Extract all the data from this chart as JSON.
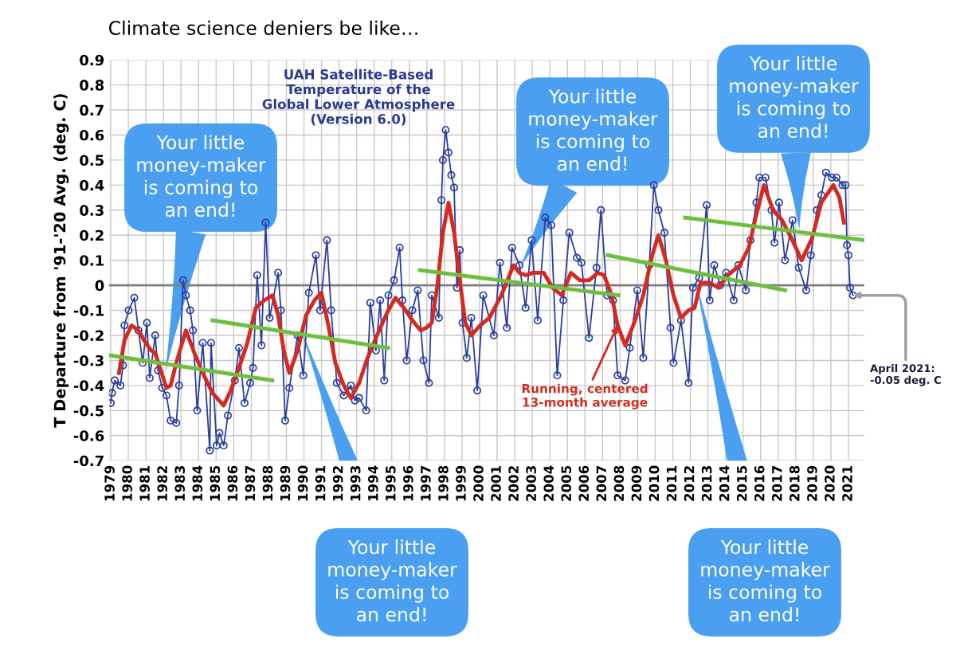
{
  "chart_data": {
    "type": "line",
    "title": "Climate science deniers be like…",
    "subtitle": "UAH Satellite-Based\nTemperature of the\nGlobal Lower Atmosphere\n(Version 6.0)",
    "ylabel": "T Departure from '91-'20 Avg. (deg. C)",
    "xlim": [
      1978.9,
      2021.9
    ],
    "xticks": [
      1979,
      1980,
      1981,
      1982,
      1983,
      1984,
      1985,
      1986,
      1987,
      1988,
      1989,
      1990,
      1991,
      1992,
      1993,
      1994,
      1995,
      1996,
      1997,
      1998,
      1999,
      2000,
      2001,
      2002,
      2003,
      2004,
      2005,
      2006,
      2007,
      2008,
      2009,
      2010,
      2011,
      2012,
      2013,
      2014,
      2015,
      2016,
      2017,
      2018,
      2019,
      2020,
      2021
    ],
    "ylim": [
      -0.7,
      0.9
    ],
    "yticks": [
      {
        "value": -0.7,
        "label": "-0.7"
      },
      {
        "value": -0.6,
        "label": "-0.6"
      },
      {
        "value": -0.5,
        "label": "-0.5"
      },
      {
        "value": -0.4,
        "label": "-0.4"
      },
      {
        "value": -0.3,
        "label": "-0.3"
      },
      {
        "value": -0.2,
        "label": "-0.2"
      },
      {
        "value": -0.1,
        "label": "-0.1"
      },
      0,
      0.1,
      0.2,
      0.3,
      0.4,
      0.5,
      0.6,
      0.7,
      0.8,
      0.9
    ],
    "grid": true,
    "series": [
      {
        "color": "#2b3fa0",
        "marker": "circle",
        "x": [
          1979.0,
          1979.07,
          1979.23,
          1979.55,
          1979.7,
          1979.78,
          1980.02,
          1980.34,
          1980.58,
          1980.82,
          1981.06,
          1981.22,
          1981.53,
          1981.69,
          1981.93,
          1982.17,
          1982.41,
          1982.73,
          1982.89,
          1983.12,
          1983.28,
          1983.52,
          1983.68,
          1983.92,
          1984.24,
          1984.64,
          1984.71,
          1985.03,
          1985.19,
          1985.43,
          1985.67,
          1986.07,
          1986.3,
          1986.62,
          1986.94,
          1987.1,
          1987.34,
          1987.58,
          1987.82,
          1988.05,
          1988.53,
          1988.69,
          1988.93,
          1989.17,
          1989.64,
          1989.96,
          1990.28,
          1990.68,
          1990.92,
          1991.31,
          1991.55,
          1991.87,
          1992.27,
          1992.67,
          1992.9,
          1993.14,
          1993.54,
          1993.78,
          1994.1,
          1994.34,
          1994.57,
          1994.81,
          1995.13,
          1995.45,
          1995.61,
          1995.85,
          1996.17,
          1996.48,
          1996.8,
          1997.12,
          1997.28,
          1997.68,
          1997.83,
          1997.91,
          1998.07,
          1998.23,
          1998.39,
          1998.55,
          1998.71,
          1998.87,
          1999.03,
          1999.27,
          1999.53,
          1999.87,
          2000.21,
          2000.81,
          2001.16,
          2001.55,
          2001.85,
          2002.27,
          2002.62,
          2002.96,
          2003.31,
          2003.74,
          2004.08,
          2004.42,
          2004.77,
          2005.11,
          2005.54,
          2005.8,
          2006.23,
          2006.66,
          2006.91,
          2007.26,
          2007.6,
          2007.86,
          2008.29,
          2008.55,
          2008.98,
          2009.32,
          2009.66,
          2009.92,
          2010.18,
          2010.52,
          2010.87,
          2011.04,
          2011.47,
          2011.9,
          2012.15,
          2012.5,
          2012.93,
          2013.1,
          2013.36,
          2013.7,
          2014.04,
          2014.47,
          2014.73,
          2015.16,
          2015.42,
          2015.76,
          2015.93,
          2016.28,
          2016.62,
          2016.79,
          2017.05,
          2017.39,
          2017.82,
          2018.17,
          2018.6,
          2018.86,
          2019.2,
          2019.46,
          2019.72,
          2020.06,
          2020.32,
          2020.66,
          2020.83,
          2020.92,
          2021.0,
          2021.09,
          2021.26
        ],
        "values": [
          -0.47,
          -0.43,
          -0.38,
          -0.4,
          -0.32,
          -0.16,
          -0.1,
          -0.05,
          -0.18,
          -0.31,
          -0.15,
          -0.37,
          -0.2,
          -0.34,
          -0.41,
          -0.44,
          -0.54,
          -0.55,
          -0.4,
          0.02,
          -0.04,
          -0.1,
          -0.18,
          -0.5,
          -0.23,
          -0.66,
          -0.23,
          -0.64,
          -0.59,
          -0.64,
          -0.52,
          -0.38,
          -0.25,
          -0.47,
          -0.39,
          -0.33,
          0.04,
          -0.24,
          0.25,
          -0.13,
          0.05,
          -0.1,
          -0.54,
          -0.41,
          -0.2,
          -0.36,
          -0.03,
          0.12,
          -0.1,
          0.18,
          -0.1,
          -0.39,
          -0.44,
          -0.4,
          -0.46,
          -0.45,
          -0.5,
          -0.07,
          -0.26,
          -0.06,
          -0.38,
          -0.04,
          0.02,
          0.15,
          -0.06,
          -0.3,
          -0.1,
          -0.02,
          -0.3,
          -0.39,
          -0.04,
          -0.13,
          0.34,
          0.5,
          0.62,
          0.53,
          0.44,
          0.39,
          -0.01,
          0.14,
          -0.15,
          -0.29,
          -0.13,
          -0.42,
          -0.04,
          -0.2,
          0.09,
          -0.17,
          0.15,
          0.08,
          -0.09,
          0.18,
          -0.14,
          0.27,
          0.24,
          -0.36,
          -0.06,
          0.21,
          0.11,
          0.09,
          -0.21,
          0.07,
          0.3,
          -0.04,
          -0.06,
          -0.36,
          -0.38,
          -0.25,
          -0.02,
          -0.29,
          0.08,
          0.4,
          0.3,
          0.21,
          -0.17,
          -0.31,
          -0.14,
          -0.39,
          -0.01,
          0.03,
          0.32,
          -0.06,
          0.08,
          0.0,
          0.05,
          -0.06,
          0.08,
          -0.02,
          0.18,
          0.33,
          0.43,
          0.43,
          0.3,
          0.17,
          0.33,
          0.1,
          0.26,
          0.07,
          -0.02,
          0.12,
          0.3,
          0.36,
          0.45,
          0.43,
          0.43,
          0.4,
          0.4,
          0.16,
          0.12,
          -0.01,
          -0.04
        ]
      },
      {
        "color": "#d42a20",
        "x": [
          1979.47,
          1979.78,
          1980.18,
          1980.58,
          1980.9,
          1981.3,
          1981.53,
          1981.85,
          1982.17,
          1982.41,
          1982.73,
          1983.28,
          1983.76,
          1984.24,
          1984.79,
          1985.43,
          1985.83,
          1986.3,
          1986.78,
          1987.26,
          1987.74,
          1988.21,
          1988.53,
          1988.85,
          1989.17,
          1989.64,
          1990.12,
          1990.6,
          1990.99,
          1991.39,
          1991.79,
          1992.27,
          1992.67,
          1993.14,
          1993.62,
          1994.1,
          1994.73,
          1995.21,
          1995.69,
          1996.17,
          1996.64,
          1996.96,
          1997.28,
          1997.6,
          1997.91,
          1998.23,
          1998.55,
          1998.87,
          1999.19,
          1999.53,
          2000.04,
          2000.56,
          2001.24,
          2001.93,
          2002.27,
          2002.62,
          2003.05,
          2003.65,
          2004.16,
          2004.68,
          2005.2,
          2005.71,
          2006.23,
          2006.74,
          2007.09,
          2007.52,
          2007.86,
          2008.29,
          2008.8,
          2009.32,
          2009.83,
          2010.18,
          2010.61,
          2011.04,
          2011.47,
          2011.9,
          2012.24,
          2012.58,
          2013.1,
          2013.61,
          2014.13,
          2014.82,
          2015.33,
          2015.68,
          2016.19,
          2016.71,
          2017.22,
          2017.74,
          2018.34,
          2018.94,
          2019.46,
          2020.14,
          2020.49,
          2020.74
        ],
        "values": [
          -0.35,
          -0.22,
          -0.16,
          -0.18,
          -0.22,
          -0.26,
          -0.27,
          -0.34,
          -0.41,
          -0.4,
          -0.31,
          -0.18,
          -0.27,
          -0.35,
          -0.43,
          -0.48,
          -0.42,
          -0.33,
          -0.23,
          -0.09,
          -0.06,
          -0.04,
          -0.12,
          -0.26,
          -0.35,
          -0.26,
          -0.12,
          -0.06,
          -0.03,
          -0.16,
          -0.31,
          -0.4,
          -0.45,
          -0.39,
          -0.29,
          -0.21,
          -0.11,
          -0.05,
          -0.09,
          -0.14,
          -0.18,
          -0.17,
          -0.15,
          0.0,
          0.21,
          0.33,
          0.21,
          0.02,
          -0.15,
          -0.2,
          -0.16,
          -0.13,
          -0.04,
          0.08,
          0.05,
          0.04,
          0.05,
          0.05,
          -0.01,
          -0.04,
          0.05,
          0.02,
          0.02,
          0.05,
          0.04,
          -0.04,
          -0.16,
          -0.24,
          -0.15,
          -0.04,
          0.12,
          0.2,
          0.1,
          -0.04,
          -0.13,
          -0.1,
          -0.09,
          0.01,
          0.01,
          -0.01,
          0.04,
          0.08,
          0.15,
          0.26,
          0.4,
          0.3,
          0.26,
          0.19,
          0.1,
          0.19,
          0.33,
          0.4,
          0.35,
          0.25
        ]
      },
      {
        "color": "#6cbf3f",
        "x": [
          1979.0,
          1988.2
        ],
        "values": [
          -0.28,
          -0.38
        ]
      },
      {
        "color": "#6cbf3f",
        "x": [
          1984.8,
          1994.8
        ],
        "values": [
          -0.14,
          -0.25
        ]
      },
      {
        "color": "#6cbf3f",
        "x": [
          1996.6,
          2007.9
        ],
        "values": [
          0.06,
          -0.04
        ]
      },
      {
        "color": "#6cbf3f",
        "x": [
          2007.3,
          2017.4
        ],
        "values": [
          0.12,
          -0.02
        ]
      },
      {
        "color": "#6cbf3f",
        "x": [
          2011.7,
          2021.9
        ],
        "values": [
          0.27,
          0.18
        ]
      }
    ],
    "ref_lines": [
      {
        "axis": "y",
        "value": 0,
        "color": "#808080"
      }
    ],
    "annotations": [
      "Your little\nmoney-maker\nis coming to\nan end!",
      "Your little\nmoney-maker\nis coming to\nan end!",
      "Your little\nmoney-maker\nis coming to\nan end!",
      "Your little\nmoney-maker\nis coming to\nan end!",
      "Your little\nmoney-maker\nis coming to\nan end!",
      {
        "text": "Running, centered\n13-month average",
        "x": 2007.86,
        "y": -0.16
      },
      {
        "text": "April 2021:\n-0.05 deg. C",
        "x": 2021.26,
        "y": -0.04
      }
    ]
  }
}
